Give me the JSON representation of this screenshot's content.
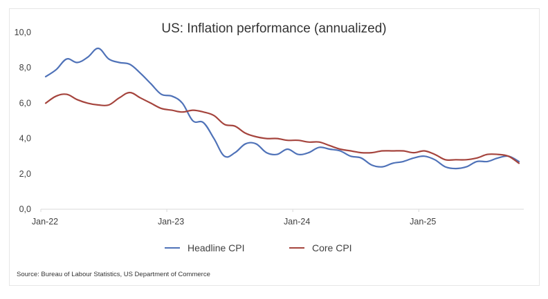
{
  "chart_data": {
    "type": "line",
    "title": "US: Inflation performance (annualized)",
    "xlabel": "",
    "ylabel": "",
    "ylim": [
      0,
      10
    ],
    "yticks": [
      "0,0",
      "2,0",
      "4,0",
      "6,0",
      "8,0",
      "10,0"
    ],
    "ytick_values": [
      0,
      2,
      4,
      6,
      8,
      10
    ],
    "xtick_labels": [
      "Jan-22",
      "Jan-23",
      "Jan-24",
      "Jan-25"
    ],
    "xtick_indices": [
      0,
      12,
      24,
      36
    ],
    "grid": false,
    "legend_position": "bottom",
    "x": [
      "Jan-22",
      "Feb-22",
      "Mar-22",
      "Apr-22",
      "May-22",
      "Jun-22",
      "Jul-22",
      "Aug-22",
      "Sep-22",
      "Oct-22",
      "Nov-22",
      "Dec-22",
      "Jan-23",
      "Feb-23",
      "Mar-23",
      "Apr-23",
      "May-23",
      "Jun-23",
      "Jul-23",
      "Aug-23",
      "Sep-23",
      "Oct-23",
      "Nov-23",
      "Dec-23",
      "Jan-24",
      "Feb-24",
      "Mar-24",
      "Apr-24",
      "May-24",
      "Jun-24",
      "Jul-24",
      "Aug-24",
      "Sep-24",
      "Oct-24",
      "Nov-24",
      "Dec-24",
      "Jan-25",
      "Feb-25",
      "Mar-25",
      "Apr-25",
      "May-25",
      "Jun-25",
      "Jul-25",
      "Aug-25",
      "Sep-25",
      "Oct-25"
    ],
    "series": [
      {
        "name": "Headline CPI",
        "color": "#4f72b8",
        "values": [
          7.5,
          7.9,
          8.5,
          8.3,
          8.6,
          9.1,
          8.5,
          8.3,
          8.2,
          7.7,
          7.1,
          6.5,
          6.4,
          6.0,
          5.0,
          4.9,
          4.0,
          3.0,
          3.2,
          3.7,
          3.7,
          3.2,
          3.1,
          3.4,
          3.1,
          3.2,
          3.5,
          3.4,
          3.3,
          3.0,
          2.9,
          2.5,
          2.4,
          2.6,
          2.7,
          2.9,
          3.0,
          2.8,
          2.4,
          2.3,
          2.4,
          2.7,
          2.7,
          2.9,
          3.0,
          2.7
        ]
      },
      {
        "name": "Core CPI",
        "color": "#a5443d",
        "values": [
          6.0,
          6.4,
          6.5,
          6.2,
          6.0,
          5.9,
          5.9,
          6.3,
          6.6,
          6.3,
          6.0,
          5.7,
          5.6,
          5.5,
          5.6,
          5.5,
          5.3,
          4.8,
          4.7,
          4.3,
          4.1,
          4.0,
          4.0,
          3.9,
          3.9,
          3.8,
          3.8,
          3.6,
          3.4,
          3.3,
          3.2,
          3.2,
          3.3,
          3.3,
          3.3,
          3.2,
          3.3,
          3.1,
          2.8,
          2.8,
          2.8,
          2.9,
          3.1,
          3.1,
          3.0,
          2.6
        ]
      }
    ],
    "source": "Source: Bureau of Labour Statistics, US Department of Commerce"
  }
}
